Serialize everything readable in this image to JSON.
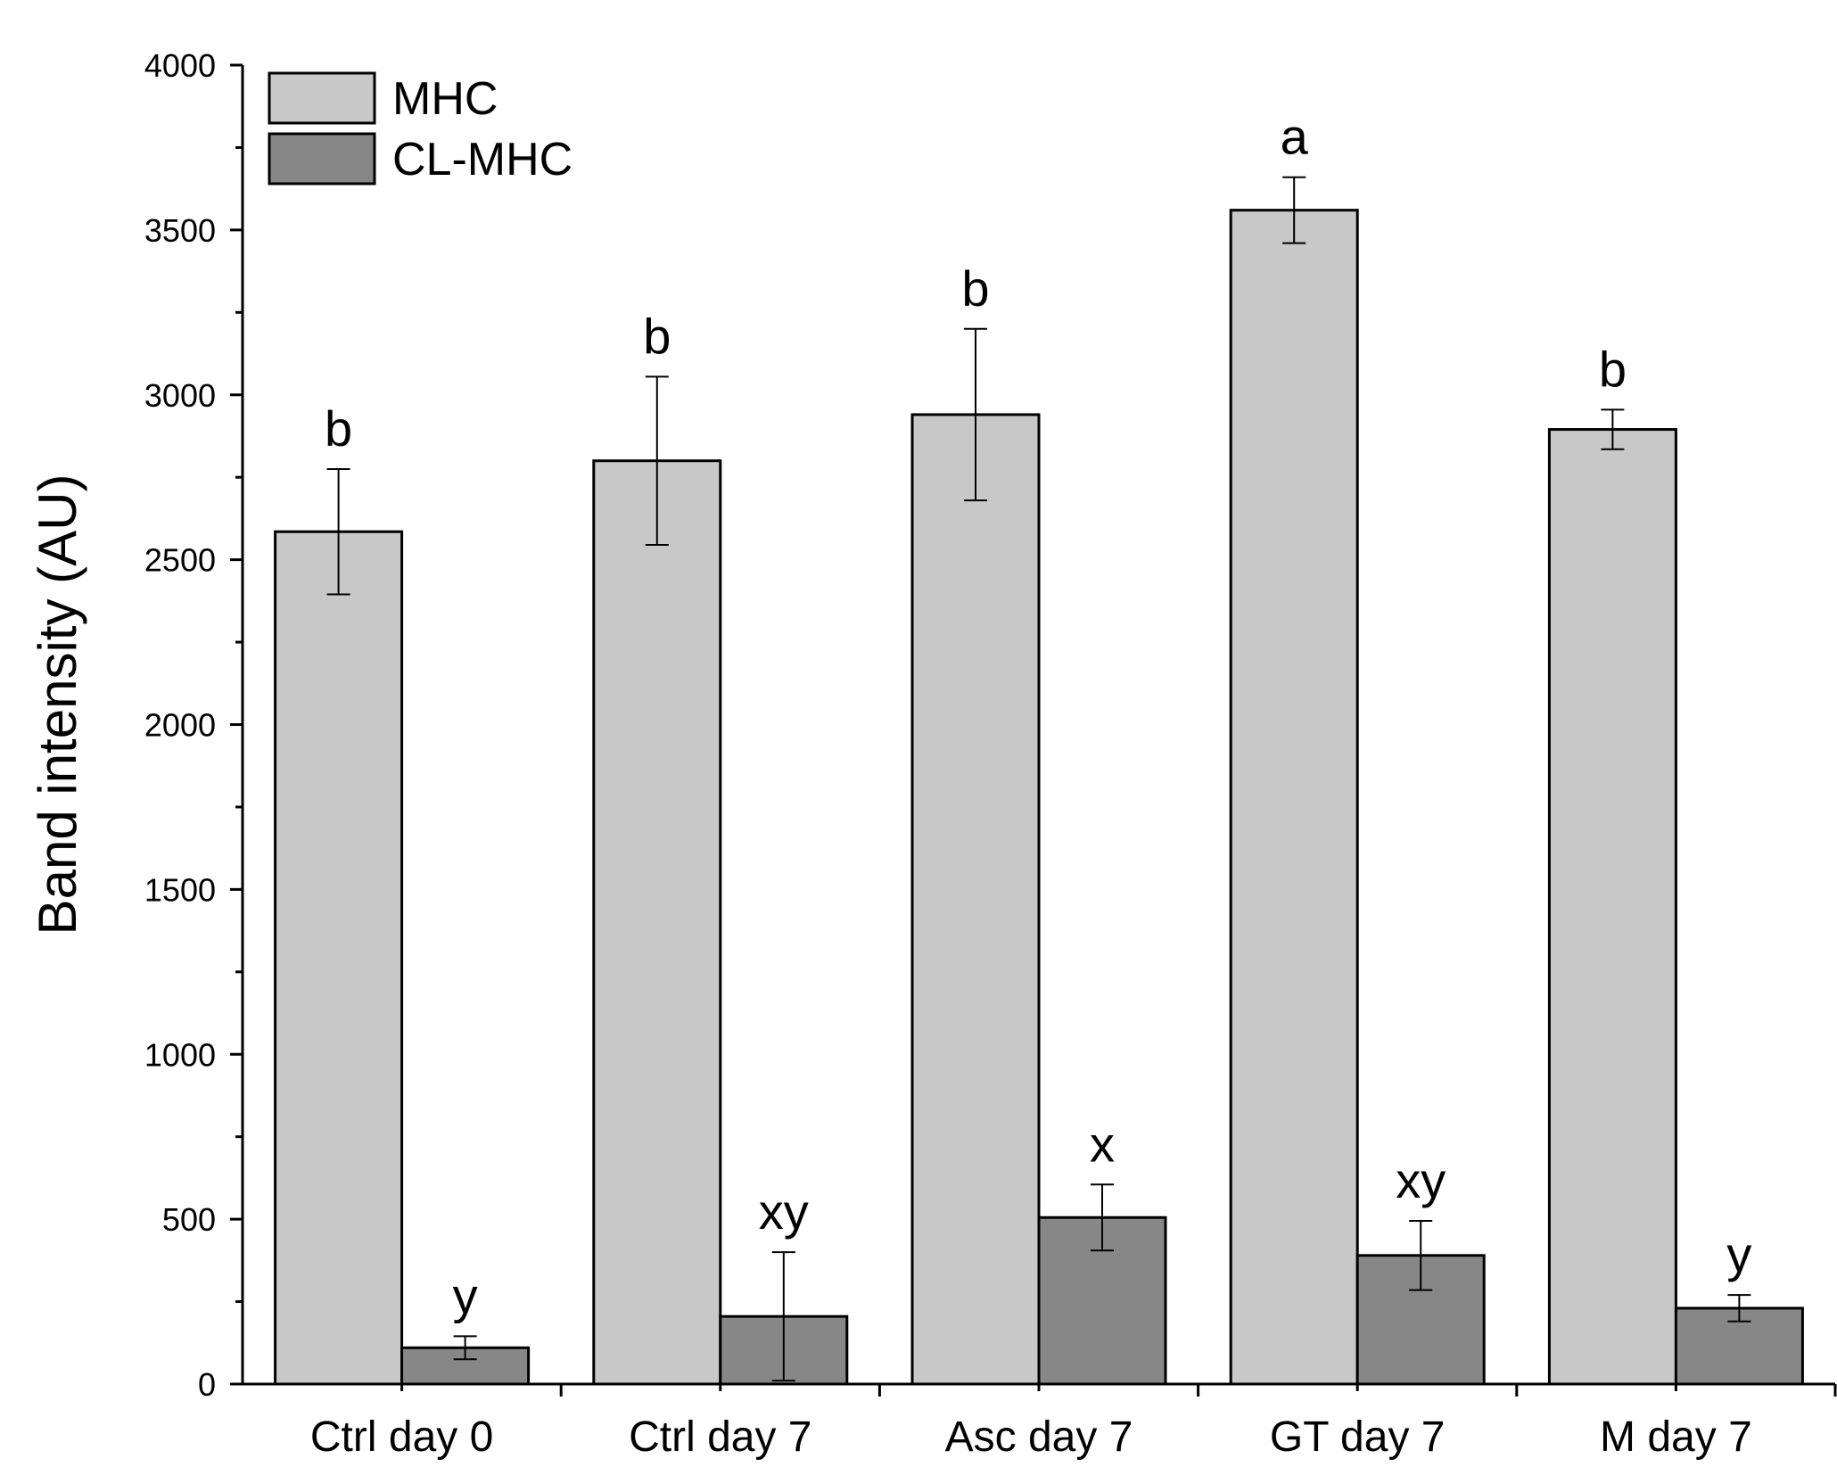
{
  "chart_data": {
    "type": "bar",
    "title": "",
    "xlabel": "",
    "ylabel": "Band intensity (AU)",
    "ylim": [
      0,
      4000
    ],
    "yticks": [
      0,
      500,
      1000,
      1500,
      2000,
      2500,
      3000,
      3500,
      4000
    ],
    "categories": [
      "Ctrl day 0",
      "Ctrl day 7",
      "Asc day 7",
      "GT day 7",
      "M day 7"
    ],
    "series": [
      {
        "name": "MHC",
        "color": "#c8c8c8",
        "values": [
          2585,
          2800,
          2940,
          3560,
          2895
        ],
        "errors": [
          190,
          255,
          260,
          100,
          60
        ],
        "labels": [
          "b",
          "b",
          "b",
          "a",
          "b"
        ]
      },
      {
        "name": "CL-MHC",
        "color": "#878787",
        "values": [
          110,
          205,
          505,
          390,
          230
        ],
        "errors": [
          35,
          195,
          100,
          105,
          40
        ],
        "labels": [
          "y",
          "xy",
          "x",
          "xy",
          "y"
        ]
      }
    ],
    "legend": {
      "position": "top-left",
      "entries": [
        "MHC",
        "CL-MHC"
      ]
    },
    "grid": false
  }
}
